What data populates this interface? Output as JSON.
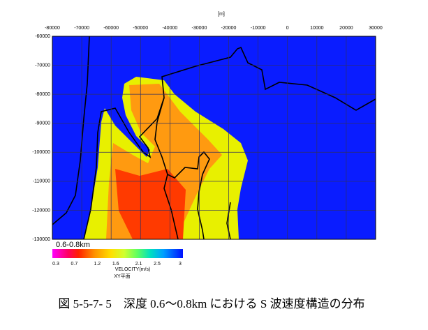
{
  "map": {
    "x_unit": "[m]",
    "xlim": [
      -80000,
      30000
    ],
    "ylim": [
      -130000,
      -60000
    ],
    "xticks": [
      -80000,
      -70000,
      -60000,
      -50000,
      -40000,
      -30000,
      -20000,
      -10000,
      0,
      10000,
      20000,
      30000
    ],
    "yticks": [
      -60000,
      -70000,
      -80000,
      -90000,
      -100000,
      -110000,
      -120000,
      -130000
    ]
  },
  "colorbar": {
    "title": "0.6-0.8km",
    "range": [
      0.3,
      3
    ],
    "ticks": [
      0.3,
      0.7,
      1.2,
      1.6,
      2.1,
      2.5,
      3
    ],
    "label": "VELOCITY(m/s)",
    "plane": "XY平面"
  },
  "caption": "図 5-5-7- 5　深度 0.6～0.8km における S 波速度構造の分布"
}
